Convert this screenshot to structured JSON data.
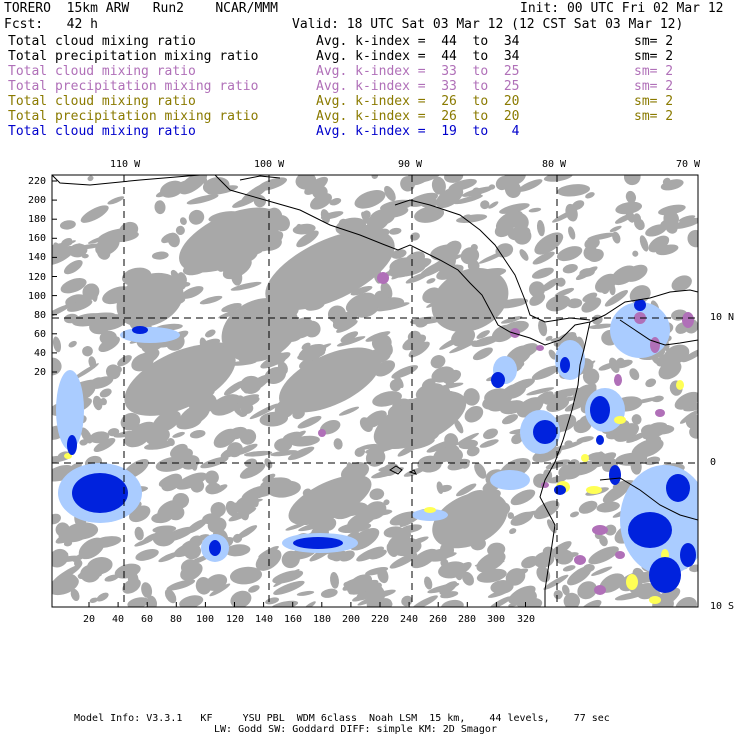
{
  "header": {
    "model": "TORERO  15km ARW   Run2    NCAR/MMM",
    "init": "Init: 00 UTC Fri 02 Mar 12",
    "fcst": "Fcst:   42 h",
    "valid": "Valid: 18 UTC Sat 03 Mar 12 (12 CST Sat 03 Mar 12)"
  },
  "legend": [
    {
      "field": "Total cloud mixing ratio",
      "kindex": "Avg. k-index =  44  to  34",
      "sm": "sm= 2",
      "color": "#000000"
    },
    {
      "field": "Total precipitation mixing ratio",
      "kindex": "Avg. k-index =  44  to  34",
      "sm": "sm= 2",
      "color": "#000000"
    },
    {
      "field": "Total cloud mixing ratio",
      "kindex": "Avg. k-index =  33  to  25",
      "sm": "sm= 2",
      "color": "#b070b8"
    },
    {
      "field": "Total precipitation mixing ratio",
      "kindex": "Avg. k-index =  33  to  25",
      "sm": "sm= 2",
      "color": "#b070b8"
    },
    {
      "field": "Total cloud mixing ratio",
      "kindex": "Avg. k-index =  26  to  20",
      "sm": "sm= 2",
      "color": "#8a7a00"
    },
    {
      "field": "Total precipitation mixing ratio",
      "kindex": "Avg. k-index =  26  to  20",
      "sm": "sm= 2",
      "color": "#8a7a00"
    },
    {
      "field": "Total cloud mixing ratio",
      "kindex": "Avg. k-index =  19  to   4",
      "sm": "",
      "color": "#0000cc"
    }
  ],
  "map": {
    "lon_labels": [
      "110 W",
      "100 W",
      "90 W",
      "80 W",
      "70 W"
    ],
    "lat_labels": [
      "10 N",
      "0",
      "10 S"
    ],
    "x_ticks": [
      "20",
      "40",
      "60",
      "80",
      "100",
      "120",
      "140",
      "160",
      "180",
      "200",
      "220",
      "240",
      "260",
      "280",
      "300",
      "320"
    ],
    "y_ticks": [
      "220",
      "200",
      "180",
      "160",
      "140",
      "120",
      "100",
      "80",
      "60",
      "40",
      "20"
    ],
    "colors": {
      "cloud_gray": "#a8a8a8",
      "purple": "#b070b8",
      "yellow": "#ffff55",
      "blue": "#0022dd",
      "light_blue": "#aaccff",
      "coast": "#000000"
    }
  },
  "footer": {
    "line1": "Model Info: V3.3.1   KF     YSU PBL  WDM 6class  Noah LSM  15 km,    44 levels,    77 sec",
    "line2": "LW: Godd SW: Goddard DIFF: simple KM: 2D Smagor"
  }
}
